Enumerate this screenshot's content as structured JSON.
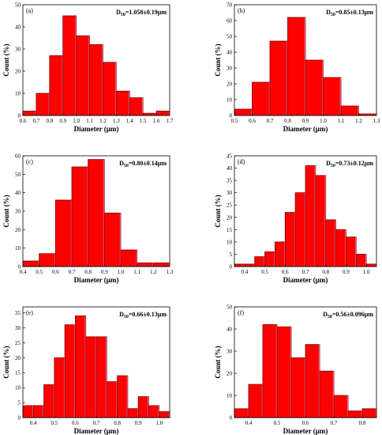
{
  "chart_data": [
    {
      "type": "bar",
      "panel_label": "(a)",
      "annotation": "D50=1.058±0.19μm",
      "annotation_main": "D",
      "annotation_sub": "50",
      "annotation_rest": "=1.058±0.19μm",
      "xlabel": "Diameter (μm)",
      "ylabel": "Count (%)",
      "xlim": [
        0.6,
        1.7
      ],
      "ylim": [
        0,
        50
      ],
      "xticks": [
        "0.6",
        "0.7",
        "0.8",
        "0.9",
        "1.0",
        "1.1",
        "1.2",
        "1.3",
        "1.4",
        "1.5",
        "1.6",
        "1.7"
      ],
      "yticks": [
        "0",
        "10",
        "20",
        "30",
        "40",
        "50"
      ],
      "bin_edges": [
        0.6,
        0.7,
        0.8,
        0.9,
        1.0,
        1.1,
        1.2,
        1.3,
        1.4,
        1.5,
        1.6,
        1.7
      ],
      "values": [
        2,
        10,
        27,
        45,
        36,
        32,
        24,
        11,
        8,
        1,
        2
      ]
    },
    {
      "type": "bar",
      "panel_label": "(b)",
      "annotation": "D50=0.85±0.13μm",
      "annotation_main": "D",
      "annotation_sub": "50",
      "annotation_rest": "=0.85±0.13μm",
      "xlabel": "Diameter (μm)",
      "ylabel": "Count (%)",
      "xlim": [
        0.5,
        1.3
      ],
      "ylim": [
        0,
        70
      ],
      "xticks": [
        "0.5",
        "0.6",
        "0.7",
        "0.8",
        "0.9",
        "1.0",
        "1.1",
        "1.2",
        "1.3"
      ],
      "yticks": [
        "0",
        "10",
        "20",
        "30",
        "40",
        "50",
        "60",
        "70"
      ],
      "bin_edges": [
        0.5,
        0.6,
        0.7,
        0.8,
        0.9,
        1.0,
        1.1,
        1.2,
        1.3
      ],
      "values": [
        4,
        21,
        47,
        62,
        35,
        24,
        6,
        1
      ]
    },
    {
      "type": "bar",
      "panel_label": "(c)",
      "annotation": "D50=0.80±0.14μm",
      "annotation_main": "D",
      "annotation_sub": "50",
      "annotation_rest": "=0.80±0.14μm",
      "xlabel": "Diameter (μm)",
      "ylabel": "Count (%)",
      "xlim": [
        0.4,
        1.3
      ],
      "ylim": [
        0,
        60
      ],
      "xticks": [
        "0.4",
        "0.5",
        "0.6",
        "0.7",
        "0.8",
        "0.9",
        "1.0",
        "1.1",
        "1.2",
        "1.3"
      ],
      "yticks": [
        "0",
        "10",
        "20",
        "30",
        "40",
        "50",
        "60"
      ],
      "bin_edges": [
        0.4,
        0.5,
        0.6,
        0.7,
        0.8,
        0.9,
        1.0,
        1.1,
        1.2,
        1.3
      ],
      "values": [
        3,
        7,
        36,
        54,
        58,
        29,
        9,
        2,
        2
      ]
    },
    {
      "type": "bar",
      "panel_label": "(d)",
      "annotation": "D50=0.73±0.12μm",
      "annotation_main": "D",
      "annotation_sub": "50",
      "annotation_rest": "=0.73±0.12μm",
      "xlabel": "Diameter (μm)",
      "ylabel": "Count (%)",
      "xlim": [
        0.35,
        1.05
      ],
      "ylim": [
        0,
        45
      ],
      "xticks": [
        "0.4",
        "0.5",
        "0.6",
        "0.7",
        "0.8",
        "0.9",
        "1.0"
      ],
      "yticks": [
        "0",
        "5",
        "10",
        "15",
        "20",
        "25",
        "30",
        "35",
        "40",
        "45"
      ],
      "bin_edges": [
        0.35,
        0.4,
        0.45,
        0.5,
        0.55,
        0.6,
        0.65,
        0.7,
        0.75,
        0.8,
        0.85,
        0.9,
        0.95,
        1.0,
        1.05
      ],
      "values": [
        1,
        1,
        4,
        6,
        10,
        22,
        30,
        41,
        37,
        19,
        15,
        12,
        5,
        1
      ]
    },
    {
      "type": "bar",
      "panel_label": "(e)",
      "annotation": "D50=0.66±0.13μm",
      "annotation_main": "D",
      "annotation_sub": "50",
      "annotation_rest": "=0.66±0.13μm",
      "xlabel": "Diameter (μm)",
      "ylabel": "Count (%)",
      "xlim": [
        0.35,
        1.05
      ],
      "ylim": [
        0,
        37
      ],
      "xticks": [
        "0.4",
        "0.5",
        "0.6",
        "0.7",
        "0.8",
        "0.9",
        "1.0"
      ],
      "yticks": [
        "0",
        "5",
        "10",
        "15",
        "20",
        "25",
        "30",
        "35"
      ],
      "bin_edges": [
        0.35,
        0.4,
        0.45,
        0.5,
        0.55,
        0.6,
        0.65,
        0.7,
        0.75,
        0.8,
        0.85,
        0.9,
        0.95,
        1.0,
        1.05
      ],
      "values": [
        4,
        4,
        11,
        20,
        31,
        34,
        27,
        27,
        12,
        14,
        3,
        7,
        4,
        2
      ]
    },
    {
      "type": "bar",
      "panel_label": "(f)",
      "annotation": "D50=0.56±0.096μm",
      "annotation_main": "D",
      "annotation_sub": "50",
      "annotation_rest": "=0.56±0.096μm",
      "xlabel": "Diameter (μm)",
      "ylabel": "Count (%)",
      "xlim": [
        0.35,
        0.85
      ],
      "ylim": [
        0,
        50
      ],
      "xticks": [
        "0.4",
        "0.5",
        "0.6",
        "0.7",
        "0.8"
      ],
      "yticks": [
        "0",
        "10",
        "20",
        "30",
        "40",
        "50"
      ],
      "bin_edges": [
        0.35,
        0.4,
        0.45,
        0.5,
        0.55,
        0.6,
        0.65,
        0.7,
        0.75,
        0.8,
        0.85
      ],
      "values": [
        4,
        15,
        42,
        41,
        27,
        33,
        21,
        10,
        3,
        4
      ]
    }
  ],
  "style": {
    "bar_fill": "#ff0000",
    "bar_edge": "#7a0000",
    "bar_glow": "#e6b0f0",
    "axis_color": "#000000"
  }
}
